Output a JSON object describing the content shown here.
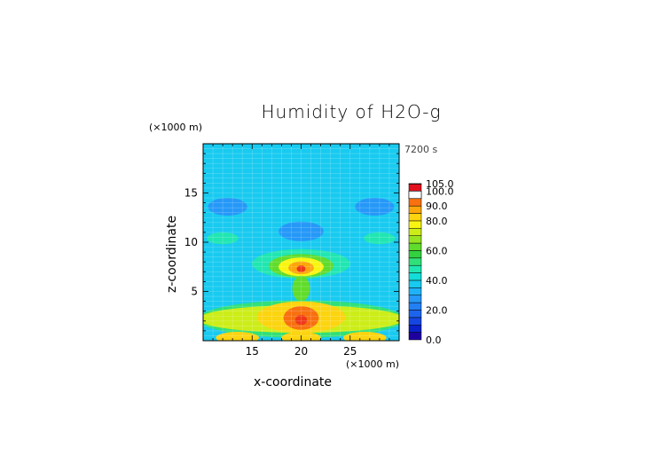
{
  "chart_data": {
    "type": "heatmap",
    "title": "Humidity of H2O-g",
    "subtitle": "7200 s",
    "xlabel": "x-coordinate",
    "ylabel": "z-coordinate",
    "x_unit": "(×1000 m)",
    "y_unit": "(×1000 m)",
    "xlim": [
      10,
      30
    ],
    "ylim": [
      0,
      20
    ],
    "x_ticks": [
      "15",
      "20",
      "25"
    ],
    "y_ticks": [
      "5",
      "10",
      "15"
    ],
    "colorbar": {
      "levels": [
        0,
        5,
        10,
        15,
        20,
        25,
        30,
        35,
        40,
        45,
        50,
        55,
        60,
        65,
        70,
        75,
        80,
        85,
        90,
        95,
        100,
        105
      ],
      "labels": [
        "0.0",
        "20.0",
        "40.0",
        "60.0",
        "80.0",
        "90.0",
        "100.0",
        "105.0"
      ],
      "colors": [
        "#1e00a0",
        "#0a20c8",
        "#1546e0",
        "#1d64ec",
        "#2280f4",
        "#2598f8",
        "#1fb2f8",
        "#18caf0",
        "#14dcd8",
        "#20e6b2",
        "#30e078",
        "#33d040",
        "#60dc2c",
        "#96e422",
        "#cced18",
        "#f8f512",
        "#fcd410",
        "#fca60c",
        "#f87010",
        "#ee3818",
        "#e2101e",
        "#ffffff"
      ]
    },
    "background_humidity": 38,
    "features": [
      {
        "x": 12.5,
        "z": 13.6,
        "rx": 2.0,
        "rz": 0.9,
        "value": 28
      },
      {
        "x": 27.5,
        "z": 13.6,
        "rx": 2.0,
        "rz": 0.9,
        "value": 28
      },
      {
        "x": 20.0,
        "z": 11.1,
        "rx": 2.3,
        "rz": 1.0,
        "value": 28
      },
      {
        "x": 12.0,
        "z": 10.4,
        "rx": 1.6,
        "rz": 0.6,
        "value": 45
      },
      {
        "x": 28.0,
        "z": 10.4,
        "rx": 1.6,
        "rz": 0.6,
        "value": 45
      },
      {
        "x": 20.0,
        "z": 7.8,
        "rx": 5.0,
        "rz": 1.5,
        "value": 45
      },
      {
        "x": 20.0,
        "z": 7.6,
        "rx": 3.3,
        "rz": 1.2,
        "value": 62
      },
      {
        "x": 20.0,
        "z": 7.5,
        "rx": 2.3,
        "rz": 0.95,
        "value": 78
      },
      {
        "x": 20.0,
        "z": 7.4,
        "rx": 1.3,
        "rz": 0.65,
        "value": 88
      },
      {
        "x": 20.0,
        "z": 7.3,
        "rx": 0.45,
        "rz": 0.35,
        "value": 96
      },
      {
        "x": 20.0,
        "z": 5.3,
        "rx": 0.9,
        "rz": 1.3,
        "value": 62
      },
      {
        "x": 20.0,
        "z": 2.2,
        "rx": 10.5,
        "rz": 1.9,
        "value": 52
      },
      {
        "x": 20.0,
        "z": 2.2,
        "rx": 10.5,
        "rz": 1.4,
        "value": 72
      },
      {
        "x": 20.0,
        "z": 2.4,
        "rx": 4.5,
        "rz": 1.6,
        "value": 82
      },
      {
        "x": 20.0,
        "z": 2.3,
        "rx": 1.8,
        "rz": 1.2,
        "value": 90
      },
      {
        "x": 20.0,
        "z": 2.1,
        "rx": 0.6,
        "rz": 0.5,
        "value": 97
      },
      {
        "x": 13.5,
        "z": 0.3,
        "rx": 2.2,
        "rz": 0.6,
        "value": 82
      },
      {
        "x": 20.0,
        "z": 0.3,
        "rx": 2.0,
        "rz": 0.6,
        "value": 82
      },
      {
        "x": 26.5,
        "z": 0.3,
        "rx": 2.2,
        "rz": 0.6,
        "value": 82
      }
    ]
  }
}
